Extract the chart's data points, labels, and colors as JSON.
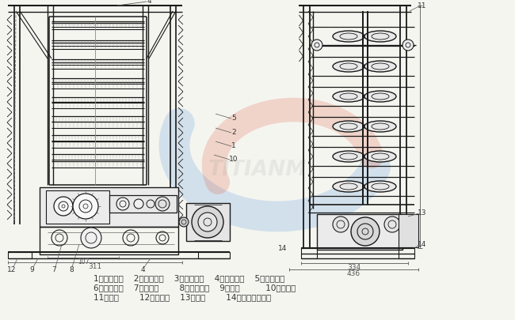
{
  "background_color": "#f5f5f0",
  "line_color": "#1a1a1a",
  "dim_color": "#555555",
  "text_color": "#333333",
  "text_fontsize": 7.5,
  "legend_lines": [
    "1、传动主轴    2、小斜齿轮    3、大斜齿轮    4、上偏心轮    5、下偏心轮",
    "6、小斜齿轮    7、凸轮轴        8、大斜齿轮    9、凸轮          10、跳动杆",
    "11、锄铁        12、甩油器    13、螺塔        14、自动停车装置"
  ],
  "wm_blue": "#4a90d9",
  "wm_red": "#e05030",
  "wm_alpha": 0.2,
  "fig_width": 6.5,
  "fig_height": 4.06,
  "dpi": 100
}
